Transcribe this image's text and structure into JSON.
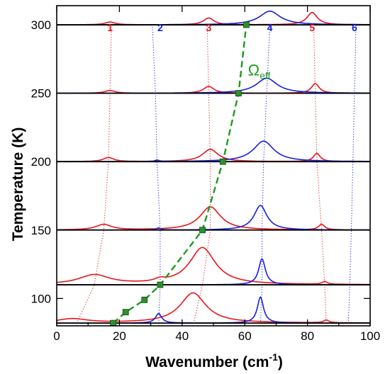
{
  "chart_data": {
    "type": "line",
    "xlabel_main": "Wavenumber (cm",
    "xlabel_sup": "-1",
    "xlabel_tail": ")",
    "ylabel": "Temperature (K)",
    "xlim": [
      0,
      100
    ],
    "ylim": [
      80,
      314
    ],
    "xticks": [
      0,
      20,
      40,
      60,
      80,
      100
    ],
    "yticks": [
      100,
      150,
      200,
      250,
      300
    ],
    "colors": {
      "red": "#e8141b",
      "blue": "#1420e0",
      "green": "#1e9a1e"
    },
    "temperatures": [
      82,
      110,
      150,
      200,
      250,
      300
    ],
    "mode_labels": [
      {
        "text": "1",
        "x": 17,
        "color": "red"
      },
      {
        "text": "2",
        "x": 33,
        "color": "blue"
      },
      {
        "text": "3",
        "x": 48.5,
        "color": "red"
      },
      {
        "text": "4",
        "x": 68,
        "color": "blue"
      },
      {
        "text": "5",
        "x": 81.5,
        "color": "red"
      },
      {
        "text": "6",
        "x": 95,
        "color": "blue"
      }
    ],
    "guides": [
      {
        "color": "red",
        "points": [
          [
            6,
            80
          ],
          [
            12,
            110
          ],
          [
            15,
            150
          ],
          [
            16.5,
            200
          ],
          [
            17,
            250
          ],
          [
            17.5,
            300
          ]
        ]
      },
      {
        "color": "blue",
        "points": [
          [
            32.5,
            80
          ],
          [
            33,
            110
          ],
          [
            33,
            150
          ],
          [
            32,
            200
          ],
          [
            31.5,
            250
          ],
          [
            30.5,
            300
          ]
        ]
      },
      {
        "color": "red",
        "points": [
          [
            43.5,
            80
          ],
          [
            46.5,
            110
          ],
          [
            49,
            150
          ],
          [
            49,
            200
          ],
          [
            48.5,
            250
          ],
          [
            48,
            300
          ]
        ]
      },
      {
        "color": "blue",
        "points": [
          [
            65,
            80
          ],
          [
            65.5,
            110
          ],
          [
            65.5,
            150
          ],
          [
            66,
            200
          ],
          [
            67,
            250
          ],
          [
            68,
            300
          ]
        ]
      },
      {
        "color": "red",
        "points": [
          [
            86,
            80
          ],
          [
            85.5,
            110
          ],
          [
            84.5,
            150
          ],
          [
            83,
            200
          ],
          [
            82.5,
            250
          ],
          [
            82,
            300
          ]
        ]
      },
      {
        "color": "blue",
        "points": [
          [
            93,
            80
          ],
          [
            93.5,
            110
          ],
          [
            94,
            150
          ],
          [
            94.5,
            200
          ],
          [
            95,
            250
          ],
          [
            95.5,
            300
          ]
        ]
      }
    ],
    "spectra": [
      {
        "T": 82,
        "color": "red",
        "peaks": [
          {
            "x": 5,
            "h": 3,
            "w": 6
          },
          {
            "x": 43.5,
            "h": 22,
            "w": 5
          },
          {
            "x": 86,
            "h": 2,
            "w": 1
          }
        ]
      },
      {
        "T": 82,
        "color": "blue",
        "peaks": [
          {
            "x": 32.5,
            "h": 7,
            "w": 1.2
          },
          {
            "x": 65,
            "h": 19,
            "w": 1.2
          }
        ]
      },
      {
        "T": 110,
        "color": "red",
        "peaks": [
          {
            "x": 12,
            "h": 7,
            "w": 6
          },
          {
            "x": 33,
            "h": 2,
            "w": 2
          },
          {
            "x": 46.5,
            "h": 27,
            "w": 5
          },
          {
            "x": 85.5,
            "h": 2,
            "w": 1
          }
        ]
      },
      {
        "T": 110,
        "color": "blue",
        "peaks": [
          {
            "x": 65.5,
            "h": 19,
            "w": 1.3
          }
        ]
      },
      {
        "T": 150,
        "color": "red",
        "peaks": [
          {
            "x": 15,
            "h": 4,
            "w": 3
          },
          {
            "x": 49,
            "h": 17,
            "w": 4
          },
          {
            "x": 84.5,
            "h": 4,
            "w": 1.2
          }
        ]
      },
      {
        "T": 150,
        "color": "blue",
        "peaks": [
          {
            "x": 32.5,
            "h": 1.5,
            "w": 0.8
          },
          {
            "x": 65,
            "h": 18,
            "w": 2.5
          }
        ]
      },
      {
        "T": 200,
        "color": "red",
        "peaks": [
          {
            "x": 16.5,
            "h": 3,
            "w": 2
          },
          {
            "x": 49,
            "h": 9,
            "w": 3
          },
          {
            "x": 83,
            "h": 6,
            "w": 1.3
          }
        ]
      },
      {
        "T": 200,
        "color": "blue",
        "peaks": [
          {
            "x": 32,
            "h": 1,
            "w": 0.8
          },
          {
            "x": 66,
            "h": 15,
            "w": 4
          }
        ]
      },
      {
        "T": 250,
        "color": "red",
        "peaks": [
          {
            "x": 17,
            "h": 2,
            "w": 2
          },
          {
            "x": 48.5,
            "h": 5,
            "w": 2
          },
          {
            "x": 82.5,
            "h": 7,
            "w": 1.5
          }
        ]
      },
      {
        "T": 250,
        "color": "blue",
        "peaks": [
          {
            "x": 67,
            "h": 11,
            "w": 4
          }
        ]
      },
      {
        "T": 300,
        "color": "red",
        "peaks": [
          {
            "x": 17,
            "h": 2,
            "w": 2
          },
          {
            "x": 48.5,
            "h": 5,
            "w": 2
          },
          {
            "x": 81.5,
            "h": 9,
            "w": 2
          }
        ]
      },
      {
        "T": 300,
        "color": "blue",
        "peaks": [
          {
            "x": 68,
            "h": 10,
            "w": 4
          }
        ]
      }
    ],
    "omega_eff": {
      "label_main": "Ω",
      "label_sub": "eff",
      "label_pos": [
        61,
        263
      ],
      "points": [
        [
          18,
          82
        ],
        [
          22,
          90
        ],
        [
          28,
          99
        ],
        [
          33,
          110
        ],
        [
          46.5,
          150
        ],
        [
          53,
          200
        ],
        [
          58,
          250
        ],
        [
          60.5,
          300
        ]
      ]
    }
  }
}
